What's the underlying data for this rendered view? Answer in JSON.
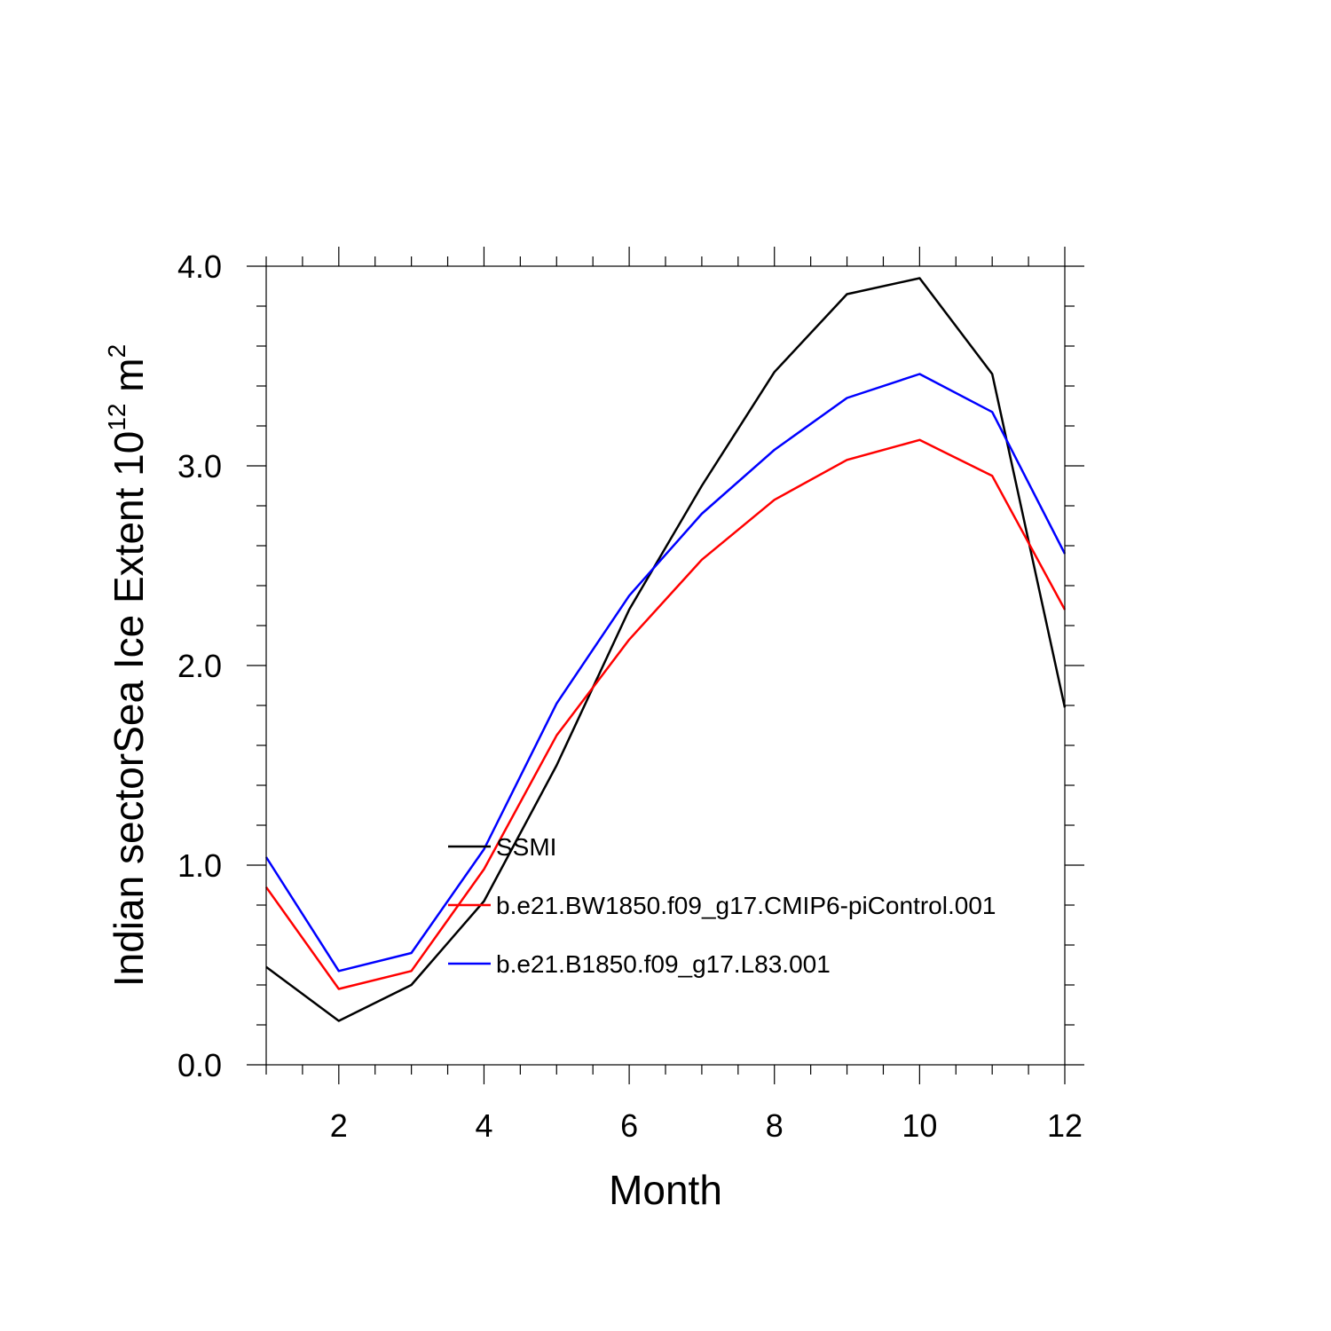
{
  "chart_data": {
    "type": "line",
    "title": "",
    "xlabel": "Month",
    "ylabel_main": "Indian sectorSea Ice Extent 10",
    "ylabel_sup": "12",
    "ylabel_unit": " m",
    "ylabel_unit_sup": "2",
    "xlim": [
      1,
      12
    ],
    "ylim": [
      0,
      4
    ],
    "x_ticks": [
      2,
      4,
      6,
      8,
      10,
      12
    ],
    "x_tick_labels": [
      "2",
      "4",
      "6",
      "8",
      "10",
      "12"
    ],
    "y_ticks": [
      0,
      1,
      2,
      3,
      4
    ],
    "y_tick_labels": [
      "0.0",
      "1.0",
      "2.0",
      "3.0",
      "4.0"
    ],
    "x": [
      1,
      2,
      3,
      4,
      5,
      6,
      7,
      8,
      9,
      10,
      11,
      12
    ],
    "grid": false,
    "legend_position": "center",
    "series": [
      {
        "name": "SSMI",
        "color": "#000000",
        "values": [
          0.49,
          0.22,
          0.4,
          0.82,
          1.5,
          2.28,
          2.9,
          3.47,
          3.86,
          3.94,
          3.46,
          1.79
        ]
      },
      {
        "name": "b.e21.BW1850.f09_g17.CMIP6-piControl.001",
        "color": "#ff0000",
        "values": [
          0.89,
          0.38,
          0.47,
          0.98,
          1.65,
          2.13,
          2.53,
          2.83,
          3.03,
          3.13,
          2.95,
          2.28
        ]
      },
      {
        "name": "b.e21.B1850.f09_g17.L83.001",
        "color": "#0000ff",
        "values": [
          1.04,
          0.47,
          0.56,
          1.08,
          1.81,
          2.35,
          2.76,
          3.08,
          3.34,
          3.46,
          3.27,
          2.56
        ]
      }
    ]
  }
}
